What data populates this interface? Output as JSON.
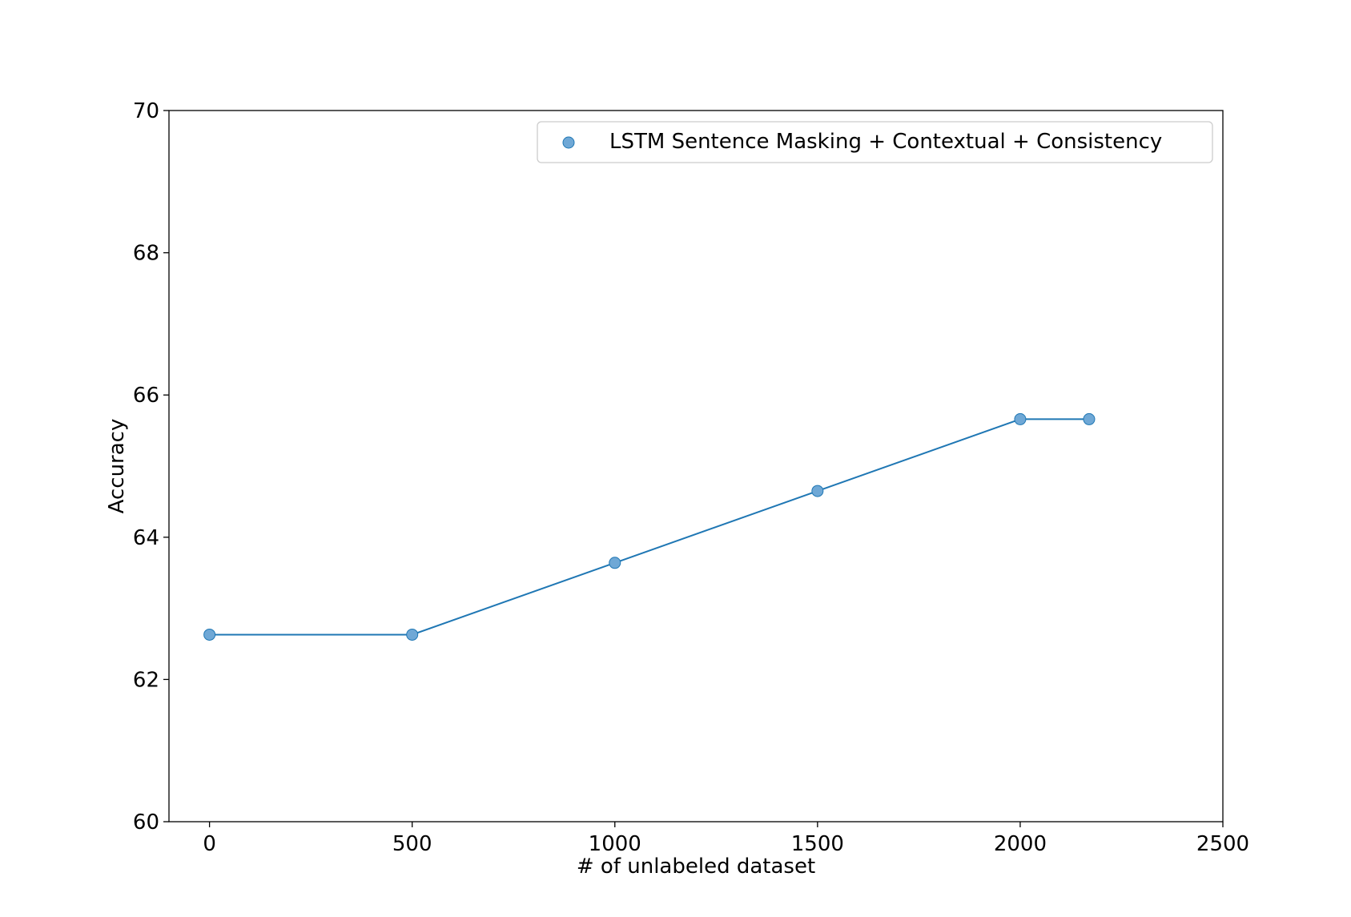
{
  "chart_data": {
    "type": "line",
    "xlabel": "# of unlabeled dataset",
    "ylabel": "Accuracy",
    "xlim": [
      -100,
      2500
    ],
    "ylim": [
      60,
      70
    ],
    "xticks": [
      0,
      500,
      1000,
      1500,
      2000,
      2500
    ],
    "yticks": [
      60,
      62,
      64,
      66,
      68,
      70
    ],
    "grid": false,
    "legend_position": "top-right",
    "series": [
      {
        "name": "LSTM Sentence Masking + Contextual + Consistency",
        "color": "#1f77b4",
        "marker_color": "#6fa8d6",
        "x": [
          0,
          500,
          1000,
          1500,
          2000,
          2170
        ],
        "y": [
          62.63,
          62.63,
          63.64,
          64.65,
          65.66,
          65.66
        ]
      }
    ]
  }
}
